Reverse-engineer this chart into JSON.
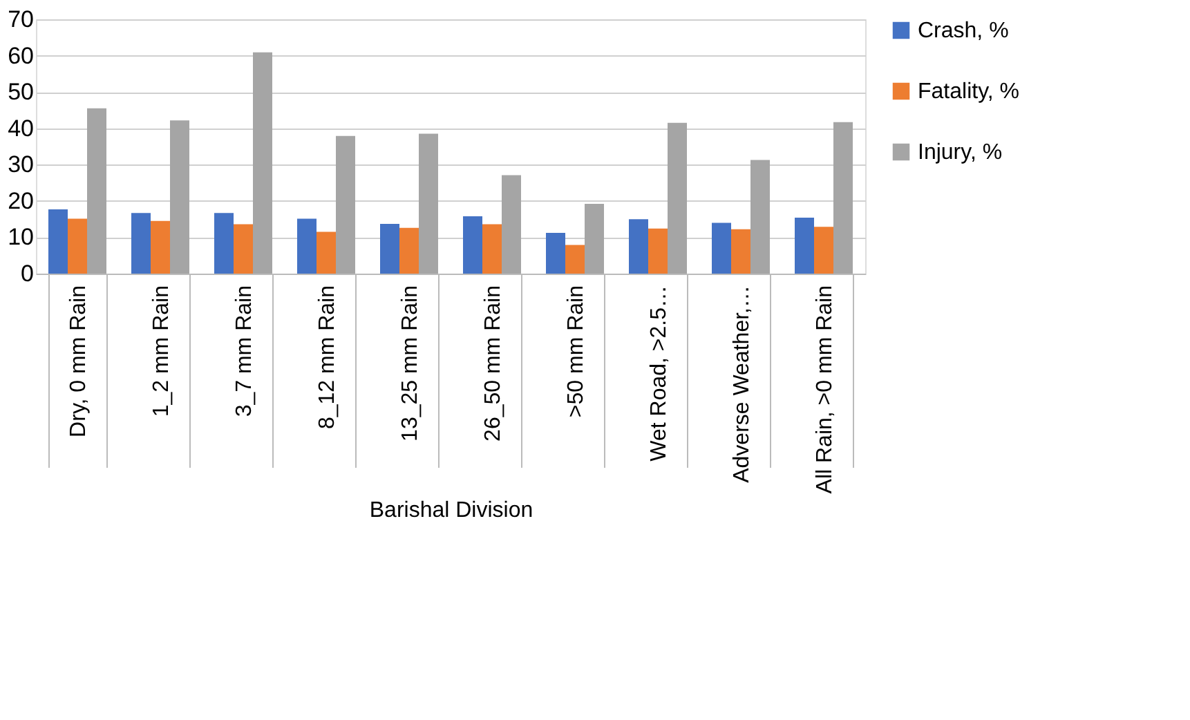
{
  "chart_data": {
    "type": "bar",
    "xlabel": "Barishal Division",
    "categories": [
      "Dry, 0 mm Rain",
      "1_2 mm Rain",
      "3_7 mm Rain",
      "8_12 mm Rain",
      "13_25 mm Rain",
      "26_50 mm Rain",
      ">50 mm Rain",
      "Wet Road, >2.5…",
      "Adverse Weather,…",
      "All Rain, >0 mm Rain"
    ],
    "series": [
      {
        "name": "Crash, %",
        "color": "#4472c4",
        "values": [
          17.7,
          16.7,
          16.7,
          15.1,
          13.7,
          15.8,
          11.2,
          15.0,
          14.0,
          15.4
        ]
      },
      {
        "name": "Fatality, %",
        "color": "#ed7d31",
        "values": [
          15.1,
          14.5,
          13.6,
          11.5,
          12.6,
          13.6,
          7.9,
          12.4,
          12.2,
          12.9
        ]
      },
      {
        "name": "Injury, %",
        "color": "#a5a5a5",
        "values": [
          45.5,
          42.2,
          60.9,
          37.9,
          38.5,
          27.1,
          19.2,
          41.5,
          31.3,
          41.7
        ]
      }
    ],
    "ylim": [
      0,
      70
    ],
    "yticks": [
      0,
      10,
      20,
      30,
      40,
      50,
      60,
      70
    ],
    "grid": "y",
    "legend": "right"
  }
}
